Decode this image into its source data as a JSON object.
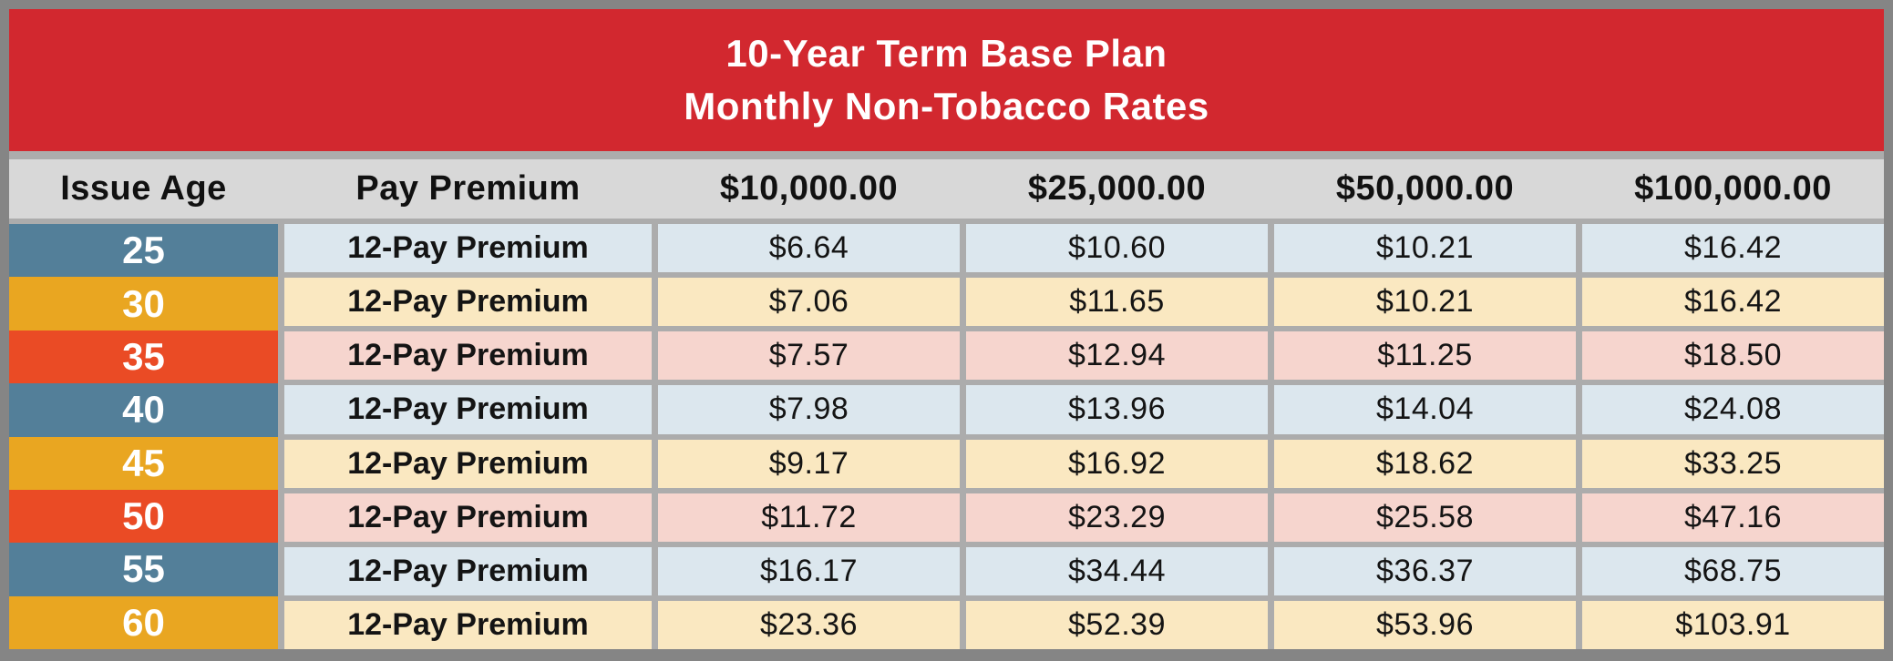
{
  "palette": {
    "frame_gray": "#858585",
    "grid_gray": "#ACACAC",
    "header_red": "#D2282F",
    "header_gray": "#D8D8D8",
    "age_blue": "#537F99",
    "age_gold": "#E9A621",
    "age_red": "#EA4B25",
    "tint_blue": "#DCE7EE",
    "tint_gold": "#FAE8C1",
    "tint_red": "#F6D5CE",
    "title_text": "#FFFFFF",
    "body_text": "#141414"
  },
  "chart_data": {
    "type": "table",
    "title": "10-Year Term Base Plan",
    "subtitle": "Monthly Non-Tobacco Rates",
    "columns": [
      "Issue Age",
      "Pay Premium",
      "$10,000.00",
      "$25,000.00",
      "$50,000.00",
      "$100,000.00"
    ],
    "rows": [
      {
        "age": "25",
        "pay_label": "12-Pay Premium",
        "color": "blue",
        "values": [
          "$6.64",
          "$10.60",
          "$10.21",
          "$16.42"
        ]
      },
      {
        "age": "30",
        "pay_label": "12-Pay Premium",
        "color": "gold",
        "values": [
          "$7.06",
          "$11.65",
          "$10.21",
          "$16.42"
        ]
      },
      {
        "age": "35",
        "pay_label": "12-Pay Premium",
        "color": "red",
        "values": [
          "$7.57",
          "$12.94",
          "$11.25",
          "$18.50"
        ]
      },
      {
        "age": "40",
        "pay_label": "12-Pay Premium",
        "color": "blue",
        "values": [
          "$7.98",
          "$13.96",
          "$14.04",
          "$24.08"
        ]
      },
      {
        "age": "45",
        "pay_label": "12-Pay Premium",
        "color": "gold",
        "values": [
          "$9.17",
          "$16.92",
          "$18.62",
          "$33.25"
        ]
      },
      {
        "age": "50",
        "pay_label": "12-Pay Premium",
        "color": "red",
        "values": [
          "$11.72",
          "$23.29",
          "$25.58",
          "$47.16"
        ]
      },
      {
        "age": "55",
        "pay_label": "12-Pay Premium",
        "color": "blue",
        "values": [
          "$16.17",
          "$34.44",
          "$36.37",
          "$68.75"
        ]
      },
      {
        "age": "60",
        "pay_label": "12-Pay Premium",
        "color": "gold",
        "values": [
          "$23.36",
          "$52.39",
          "$53.96",
          "$103.91"
        ]
      }
    ]
  }
}
